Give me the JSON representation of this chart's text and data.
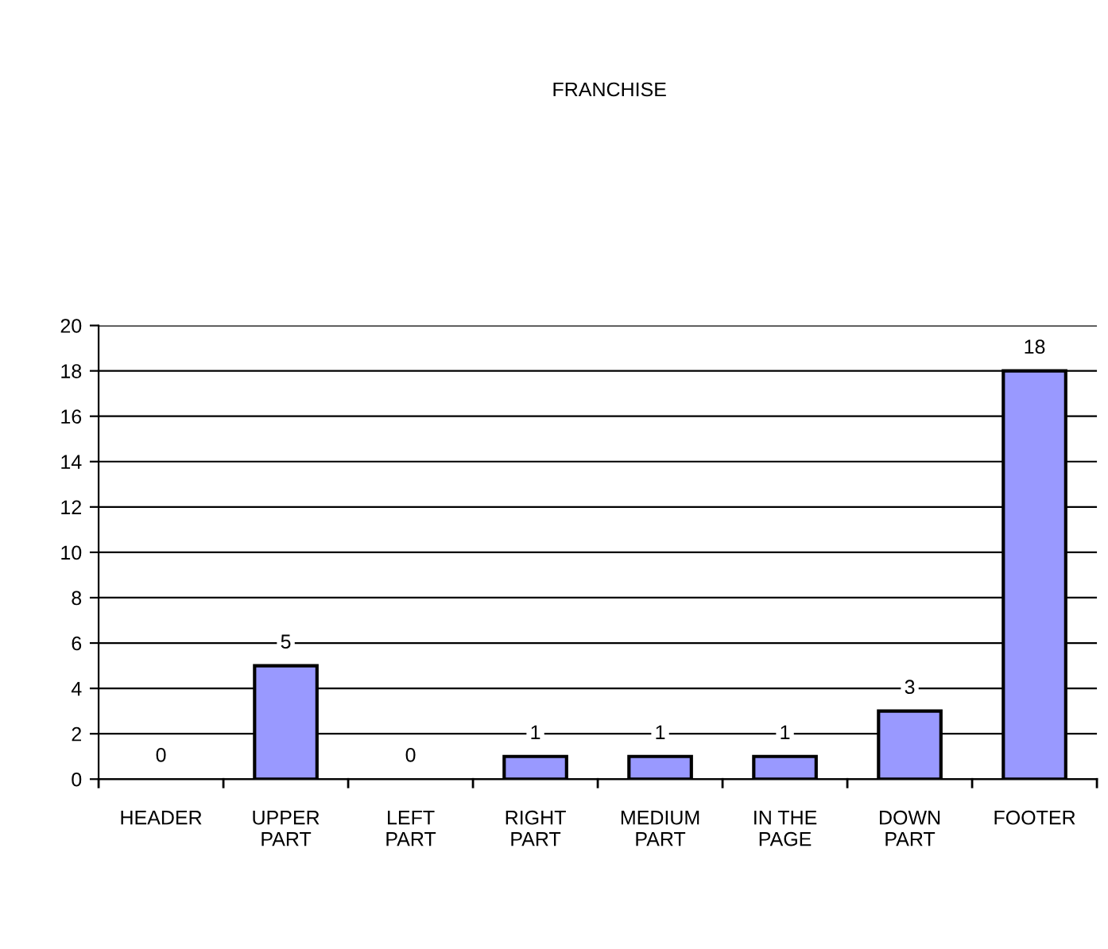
{
  "chart_data": {
    "type": "bar",
    "title": "FRANCHISE",
    "categories": [
      "HEADER",
      "UPPER\nPART",
      "LEFT\nPART",
      "RIGHT\nPART",
      "MEDIUM\nPART",
      "IN THE\nPAGE",
      "DOWN\nPART",
      "FOOTER"
    ],
    "values": [
      0,
      5,
      0,
      1,
      1,
      1,
      3,
      18
    ],
    "color": "#9999ff",
    "ylim": [
      0,
      20
    ],
    "yticks": [
      0,
      2,
      4,
      6,
      8,
      10,
      12,
      14,
      16,
      18,
      20
    ],
    "grid": "y",
    "data_labels": true,
    "legend": false
  }
}
